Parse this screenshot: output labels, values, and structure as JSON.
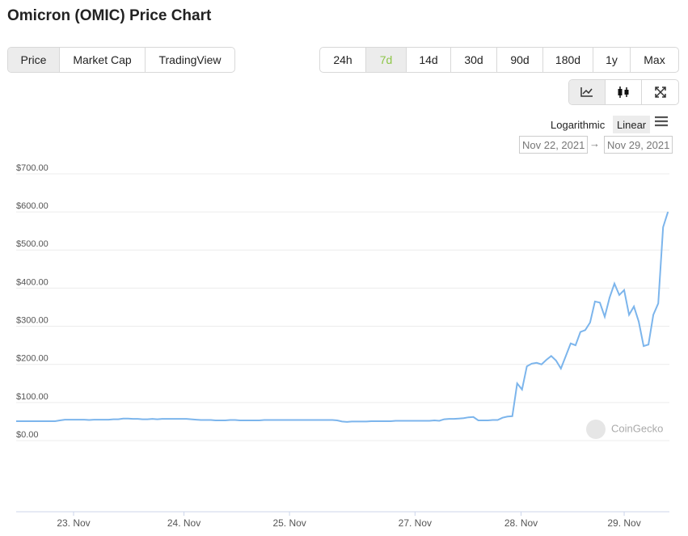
{
  "header": {
    "title": "Omicron (OMIC) Price Chart"
  },
  "view_tabs": [
    "Price",
    "Market Cap",
    "TradingView"
  ],
  "active_view": 0,
  "ranges": [
    "24h",
    "7d",
    "14d",
    "30d",
    "90d",
    "180d",
    "1y",
    "Max"
  ],
  "active_range": 1,
  "scale_options": [
    "Logarithmic",
    "Linear"
  ],
  "active_scale": 1,
  "date_from": "Nov 22, 2021",
  "date_arrow": "→",
  "date_to": "Nov 29, 2021",
  "watermark": "CoinGecko",
  "chart_data": {
    "type": "line",
    "color": "#7cb5ec",
    "grid": true,
    "values": [
      51,
      51,
      51,
      51,
      51,
      51,
      51,
      51,
      51,
      53,
      55,
      55,
      55,
      55,
      55,
      54,
      55,
      55,
      55,
      55,
      56,
      56,
      58,
      58,
      57,
      57,
      56,
      56,
      57,
      56,
      57,
      57,
      57,
      57,
      57,
      57,
      56,
      55,
      54,
      54,
      54,
      53,
      53,
      53,
      54,
      54,
      53,
      53,
      53,
      53,
      53,
      54,
      54,
      54,
      54,
      54,
      54,
      54,
      54,
      54,
      54,
      54,
      54,
      54,
      54,
      54,
      53,
      50,
      49,
      50,
      50,
      50,
      50,
      51,
      51,
      51,
      51,
      51,
      52,
      52,
      52,
      52,
      52,
      52,
      52,
      52,
      53,
      52,
      56,
      57,
      57,
      58,
      59,
      61,
      62,
      53,
      53,
      53,
      54,
      54,
      60,
      63,
      64,
      150,
      134,
      195,
      202,
      204,
      200,
      212,
      222,
      210,
      189,
      222,
      255,
      250,
      285,
      290,
      310,
      365,
      362,
      325,
      375,
      412,
      382,
      395,
      330,
      352,
      312,
      248,
      252,
      330,
      360,
      560,
      600
    ],
    "xlim": [
      0,
      134.3
    ],
    "xticks": [
      {
        "value": 11.8,
        "label": "23. Nov"
      },
      {
        "value": 34.5,
        "label": "24. Nov"
      },
      {
        "value": 56.2,
        "label": "25. Nov"
      },
      {
        "value": 82,
        "label": "27. Nov"
      },
      {
        "value": 103.8,
        "label": "28. Nov"
      },
      {
        "value": 125,
        "label": "29. Nov"
      }
    ],
    "ylim": [
      0,
      700
    ],
    "yticks": [
      {
        "value": 0,
        "label": "$0.00"
      },
      {
        "value": 100,
        "label": "$100.00"
      },
      {
        "value": 200,
        "label": "$200.00"
      },
      {
        "value": 300,
        "label": "$300.00"
      },
      {
        "value": 400,
        "label": "$400.00"
      },
      {
        "value": 500,
        "label": "$500.00"
      },
      {
        "value": 600,
        "label": "$600.00"
      },
      {
        "value": 700,
        "label": "$700.00"
      }
    ]
  }
}
